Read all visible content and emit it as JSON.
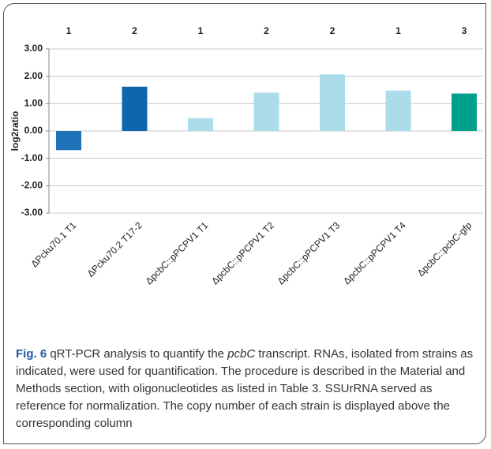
{
  "chart_data": {
    "type": "bar",
    "ylabel": "log2ratio",
    "categories": [
      "ΔPcku70.1 T1",
      "ΔPcku70.2 T17-2",
      "ΔpcbC::pPCPV1 T1",
      "ΔpcbC::pPCPV1 T2",
      "ΔpcbC::pPCPV1 T3",
      "ΔpcbC::pPCPV1 T4",
      "ΔpcbC::pcbC-gfp"
    ],
    "values": [
      -0.7,
      1.62,
      0.47,
      1.4,
      2.07,
      1.48,
      1.37
    ],
    "colors": [
      "#1e72b8",
      "#0f66ad",
      "#aadcea",
      "#aadcea",
      "#aadcea",
      "#aadcea",
      "#00a08f"
    ],
    "annotations": [
      1,
      2,
      1,
      2,
      2,
      1,
      3
    ],
    "ylim": [
      -3,
      3
    ],
    "yticks": [
      {
        "value": -3,
        "label": "-3.00"
      },
      {
        "value": -2,
        "label": "-2.00"
      },
      {
        "value": -1,
        "label": "-1.00"
      },
      {
        "value": 0,
        "label": "0.00"
      },
      {
        "value": 1,
        "label": "1.00"
      },
      {
        "value": 2,
        "label": "2.00"
      },
      {
        "value": 3,
        "label": "3.00"
      }
    ],
    "grid": true
  },
  "caption": {
    "label": "Fig. 6",
    "parts": [
      " qRT-PCR analysis to quantify the ",
      "pcbC",
      " transcript. RNAs, isolated from strains as indicated, were used for quantification. The procedure is described in the Material and Methods section, with oligonucleotides as listed in Table 3. SSUrRNA served as reference for normalization. The copy number of each strain is displayed above the corresponding column"
    ]
  }
}
